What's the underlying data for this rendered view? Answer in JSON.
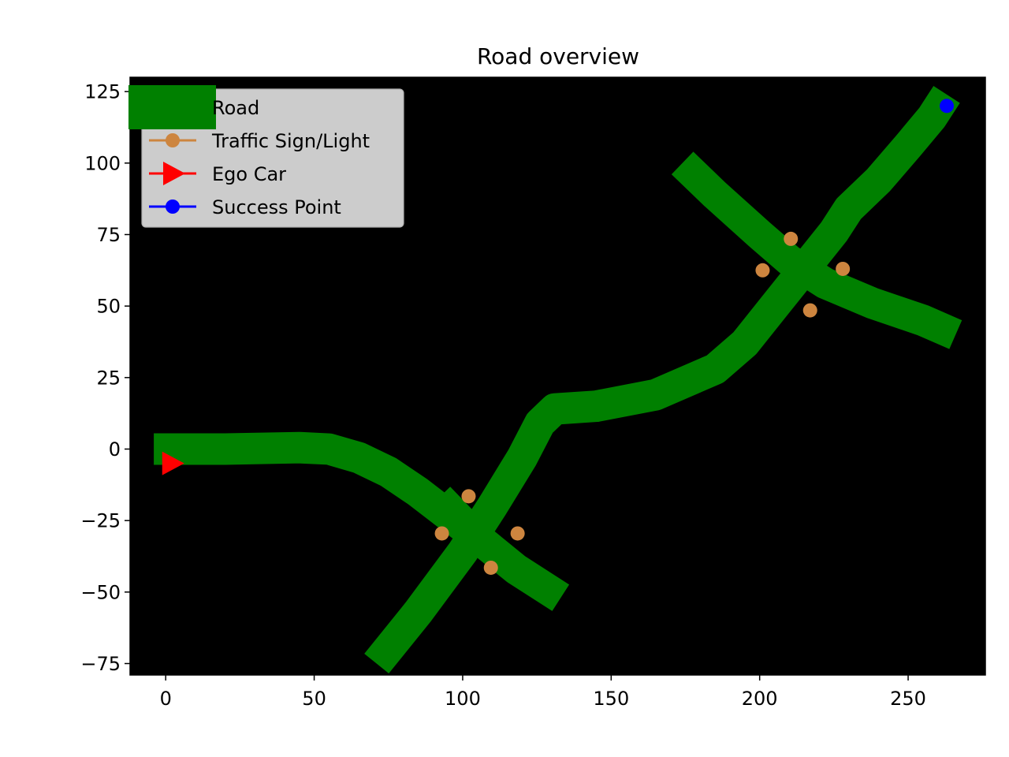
{
  "chart_data": {
    "type": "line",
    "title": "Road overview",
    "xlabel": "",
    "ylabel": "",
    "xlim": [
      -12,
      276
    ],
    "ylim": [
      -79,
      130
    ],
    "xticks": [
      0,
      50,
      100,
      150,
      200,
      250
    ],
    "yticks": [
      -75,
      -50,
      -25,
      0,
      25,
      50,
      75,
      100,
      125
    ],
    "yticklabels": [
      "−75",
      "−50",
      "−25",
      "0",
      "25",
      "50",
      "75",
      "100",
      "125"
    ],
    "background": "#000000",
    "grid": false,
    "legend_position": "top-left",
    "legend": [
      {
        "label": "Road",
        "marker": "band",
        "color": "#008000"
      },
      {
        "label": "Traffic Sign/Light",
        "marker": "circle",
        "color": "#cd853f"
      },
      {
        "label": "Ego Car",
        "marker": "triangle-right",
        "color": "#ff0000"
      },
      {
        "label": "Success Point",
        "marker": "circle",
        "color": "#0000ff"
      }
    ],
    "series": [
      {
        "name": "Road",
        "color": "#008000",
        "width": 11,
        "segments": [
          [
            [
              -4,
              0
            ],
            [
              20,
              0
            ],
            [
              45,
              0.5
            ],
            [
              55,
              0
            ],
            [
              65,
              -3
            ],
            [
              75,
              -8
            ],
            [
              85,
              -15
            ],
            [
              95,
              -23
            ],
            [
              105,
              -31
            ]
          ],
          [
            [
              71,
              -75
            ],
            [
              85,
              -57
            ],
            [
              100,
              -36
            ],
            [
              110,
              -20
            ],
            [
              120,
              -3
            ],
            [
              126,
              9
            ],
            [
              131,
              14
            ],
            [
              145,
              15
            ],
            [
              165,
              19
            ],
            [
              185,
              28
            ],
            [
              195,
              37
            ],
            [
              205,
              50
            ],
            [
              215,
              63
            ],
            [
              225,
              76
            ],
            [
              230,
              84
            ],
            [
              240,
              94
            ],
            [
              250,
              106
            ],
            [
              258,
              116
            ],
            [
              263,
              124
            ]
          ],
          [
            [
              92,
              -17
            ],
            [
              105,
              -31
            ],
            [
              118,
              -42
            ],
            [
              133,
              -52
            ]
          ],
          [
            [
              174,
              100
            ],
            [
              185,
              89
            ],
            [
              200,
              75
            ],
            [
              210,
              66
            ],
            [
              222,
              58
            ],
            [
              238,
              51
            ],
            [
              255,
              45
            ],
            [
              266,
              40
            ]
          ]
        ]
      },
      {
        "name": "Traffic Sign/Light",
        "color": "#cd853f",
        "points": [
          [
            102,
            -16.5
          ],
          [
            93,
            -29.5
          ],
          [
            118.5,
            -29.5
          ],
          [
            109.5,
            -41.5
          ],
          [
            210.5,
            73.5
          ],
          [
            201,
            62.5
          ],
          [
            228,
            63
          ],
          [
            217,
            48.5
          ]
        ]
      },
      {
        "name": "Ego Car",
        "color": "#ff0000",
        "points": [
          [
            2,
            -5
          ]
        ]
      },
      {
        "name": "Success Point",
        "color": "#0000ff",
        "points": [
          [
            263,
            120
          ]
        ]
      }
    ]
  }
}
